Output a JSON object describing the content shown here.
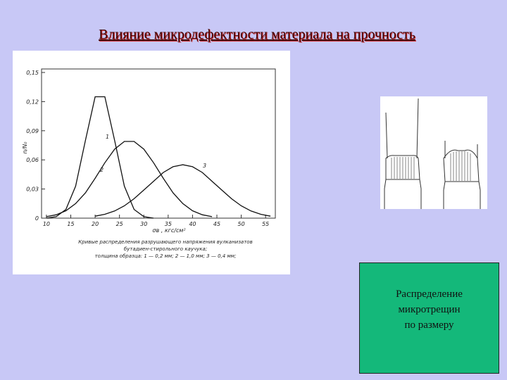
{
  "slide_title": "Влияние микродефектности материала на прочность",
  "caption": [
    "Распределение",
    "микротрещин",
    "по размеру"
  ],
  "chart_data": {
    "type": "line",
    "ylabel": "n/N₀",
    "xlabel": "σв , кгс/см²",
    "notes": [
      "Кривые распределения разрушающего напряжения вулканизатов",
      "бутадиен-стирольного каучука;",
      "толщина образца: 1 — 0,2 мм; 2 — 1,0 мм; 3 — 0,4 мм;"
    ],
    "x": [
      10,
      12,
      14,
      16,
      18,
      20,
      22,
      24,
      26,
      28,
      30,
      32,
      34,
      36,
      38,
      40,
      42,
      44,
      46,
      48,
      50,
      52,
      54,
      56
    ],
    "series": [
      {
        "name": "1",
        "color": "#111111",
        "values": [
          0,
          0.0015,
          0.009,
          0.033,
          0.08,
          0.125,
          0.125,
          0.08,
          0.033,
          0.009,
          0.0015,
          0,
          null,
          null,
          null,
          null,
          null,
          null,
          null,
          null,
          null,
          null,
          null,
          null
        ]
      },
      {
        "name": "2",
        "color": "#111111",
        "values": [
          0.0015,
          0.0035,
          0.0076,
          0.015,
          0.026,
          0.041,
          0.057,
          0.071,
          0.079,
          0.079,
          0.071,
          0.057,
          0.041,
          0.026,
          0.015,
          0.0076,
          0.0035,
          0.0015,
          null,
          null,
          null,
          null,
          null,
          null
        ]
      },
      {
        "name": "3",
        "color": "#111111",
        "values": [
          null,
          null,
          null,
          null,
          null,
          0.002,
          0.004,
          0.0074,
          0.0127,
          0.02,
          0.029,
          0.038,
          0.047,
          0.053,
          0.055,
          0.053,
          0.047,
          0.038,
          0.029,
          0.02,
          0.0127,
          0.0074,
          0.004,
          0.002
        ]
      }
    ],
    "xlim": [
      9,
      57
    ],
    "xticks": [
      10,
      15,
      20,
      25,
      30,
      35,
      40,
      45,
      50,
      55
    ],
    "ylim": [
      0,
      0.15
    ],
    "yticks": [
      0,
      {
        "value": 0.03,
        "label": "0,03"
      },
      {
        "value": 0.06,
        "label": "0,06"
      },
      {
        "value": 0.09,
        "label": "0,09"
      },
      {
        "value": 0.12,
        "label": "0,12"
      },
      {
        "value": 0.15,
        "label": "0,15"
      }
    ]
  }
}
